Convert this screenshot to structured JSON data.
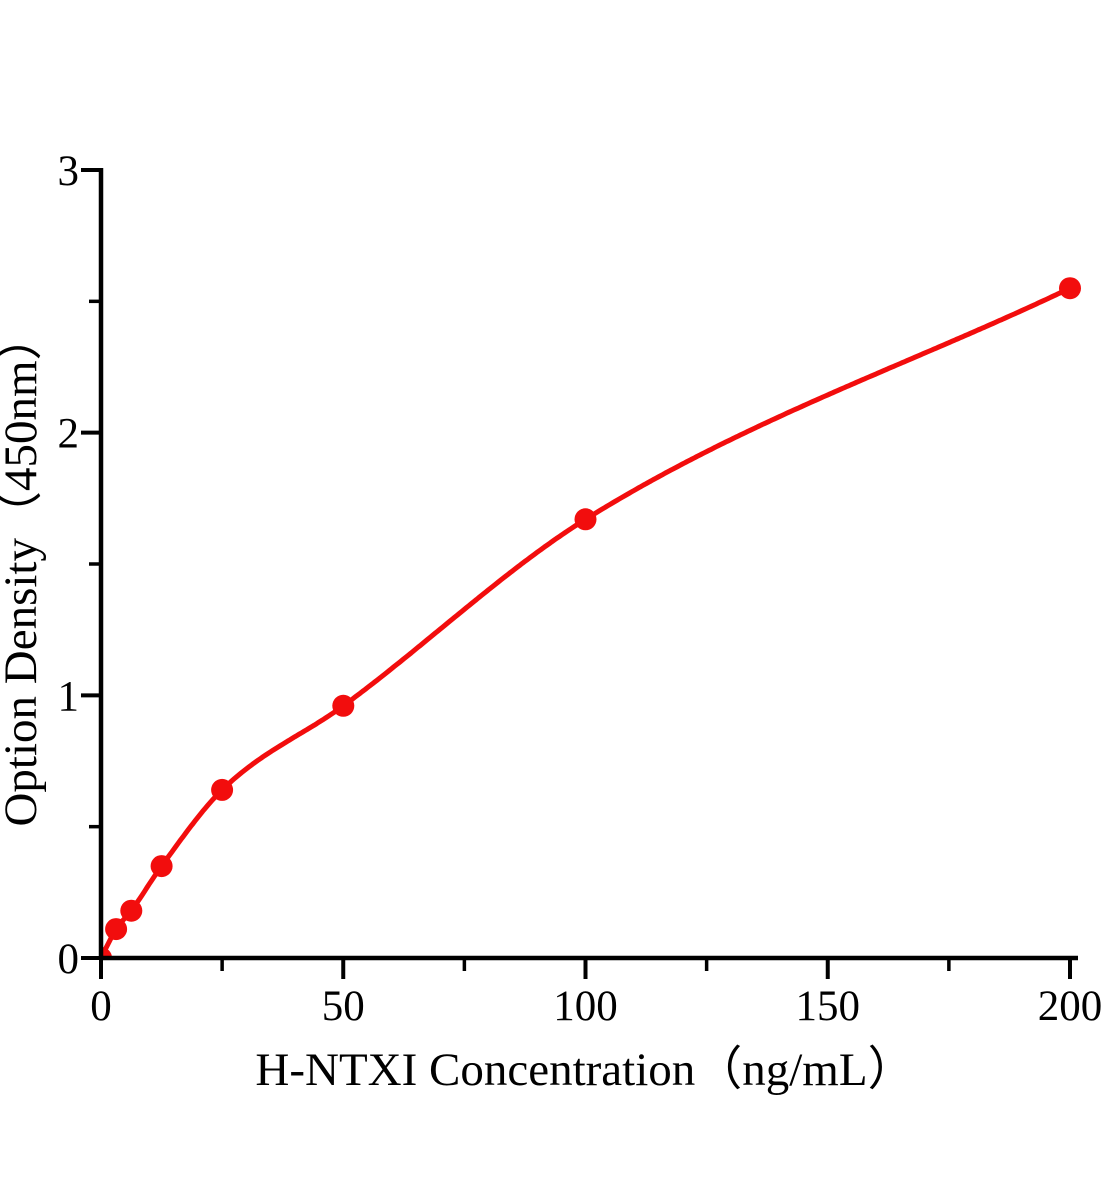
{
  "chart_data": {
    "type": "scatter",
    "title": "",
    "xlabel": "H-NTXI Concentration（ng/mL）",
    "ylabel": "Option Density（450nm）",
    "x": [
      0,
      3.12,
      6.25,
      12.5,
      25,
      50,
      100,
      200
    ],
    "y": [
      0,
      0.11,
      0.18,
      0.35,
      0.64,
      0.96,
      1.67,
      2.55
    ],
    "fit_curve": true,
    "xlim": [
      0,
      200
    ],
    "ylim": [
      0,
      3
    ],
    "x_major_ticks": [
      0,
      50,
      100,
      150,
      200
    ],
    "x_tick_labels": [
      "0",
      "50",
      "100",
      "150",
      "200"
    ],
    "x_minor_ticks": [
      25,
      75,
      125,
      175
    ],
    "y_major_ticks": [
      0,
      1,
      2,
      3
    ],
    "y_tick_labels": [
      "0",
      "1",
      "2",
      "3"
    ],
    "y_minor_ticks": [
      0.5,
      1.5,
      2.5
    ],
    "series_color": "#f20d0d",
    "axis_color": "#000000",
    "background": "#ffffff",
    "grid": false,
    "legend": false
  }
}
